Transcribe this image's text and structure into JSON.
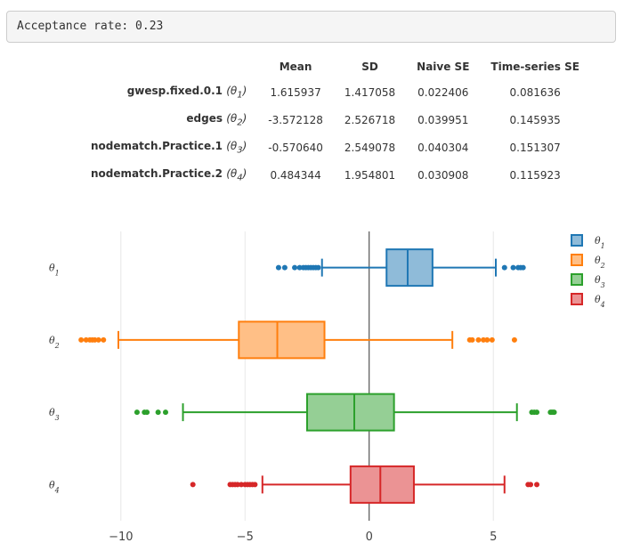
{
  "acceptance": {
    "text": "Acceptance rate: 0.23"
  },
  "table": {
    "headers": [
      "",
      "Mean",
      "SD",
      "Naive SE",
      "Time-series SE"
    ],
    "rows": [
      {
        "name": "gwesp.fixed.0.1",
        "sym": "(θ",
        "sub": "1",
        "close": ")",
        "mean": "1.615937",
        "sd": "1.417058",
        "naive_se": "0.022406",
        "ts_se": "0.081636"
      },
      {
        "name": "edges",
        "sym": "(θ",
        "sub": "2",
        "close": ")",
        "mean": "-3.572128",
        "sd": "2.526718",
        "naive_se": "0.039951",
        "ts_se": "0.145935"
      },
      {
        "name": "nodematch.Practice.1",
        "sym": "(θ",
        "sub": "3",
        "close": ")",
        "mean": "-0.570640",
        "sd": "2.549078",
        "naive_se": "0.040304",
        "ts_se": "0.151307"
      },
      {
        "name": "nodematch.Practice.2",
        "sym": "(θ",
        "sub": "4",
        "close": ")",
        "mean": "0.484344",
        "sd": "1.954801",
        "naive_se": "0.030908",
        "ts_se": "0.115923"
      }
    ]
  },
  "chart_data": {
    "type": "box",
    "orientation": "horizontal",
    "xlim": [
      -12,
      7
    ],
    "xticks": [
      -10,
      -5,
      0,
      5
    ],
    "xtick_labels": [
      "−10",
      "−5",
      "0",
      "5"
    ],
    "zero_line": 0,
    "grid": true,
    "legend_position": "top-right",
    "series": [
      {
        "name": "θ1",
        "base": "θ",
        "sub": "1",
        "color": "#1f77b4",
        "fill": "#8fbbd9",
        "whisker_low": -1.9,
        "q1": 0.7,
        "median": 1.55,
        "q3": 2.55,
        "whisker_high": 5.1,
        "outliers": [
          -3.65,
          -3.4,
          -3.0,
          -2.8,
          -2.65,
          -2.55,
          -2.45,
          -2.35,
          -2.25,
          -2.15,
          -2.05,
          5.45,
          5.8,
          6.0,
          6.1,
          6.2
        ]
      },
      {
        "name": "θ2",
        "base": "θ",
        "sub": "2",
        "color": "#ff7f0e",
        "fill": "#ffbf86",
        "whisker_low": -10.1,
        "q1": -5.25,
        "median": -3.7,
        "q3": -1.8,
        "whisker_high": 3.35,
        "outliers": [
          -11.6,
          -11.4,
          -11.25,
          -11.15,
          -11.05,
          -10.9,
          -10.7,
          4.05,
          4.15,
          4.4,
          4.6,
          4.75,
          4.95,
          5.85
        ]
      },
      {
        "name": "θ3",
        "base": "θ",
        "sub": "3",
        "color": "#2ca02c",
        "fill": "#95cf95",
        "whisker_low": -7.5,
        "q1": -2.5,
        "median": -0.6,
        "q3": 1.0,
        "whisker_high": 5.95,
        "outliers": [
          -9.35,
          -9.05,
          -8.95,
          -8.5,
          -8.2,
          6.55,
          6.65,
          6.75,
          7.3,
          7.35,
          7.4,
          7.45
        ]
      },
      {
        "name": "θ4",
        "base": "θ",
        "sub": "4",
        "color": "#d62728",
        "fill": "#eb9394",
        "whisker_low": -4.3,
        "q1": -0.75,
        "median": 0.45,
        "q3": 1.8,
        "whisker_high": 5.45,
        "outliers": [
          -7.1,
          -5.6,
          -5.5,
          -5.4,
          -5.3,
          -5.15,
          -5.0,
          -4.9,
          -4.8,
          -4.7,
          -4.6,
          6.4,
          6.5,
          6.75
        ]
      }
    ]
  }
}
